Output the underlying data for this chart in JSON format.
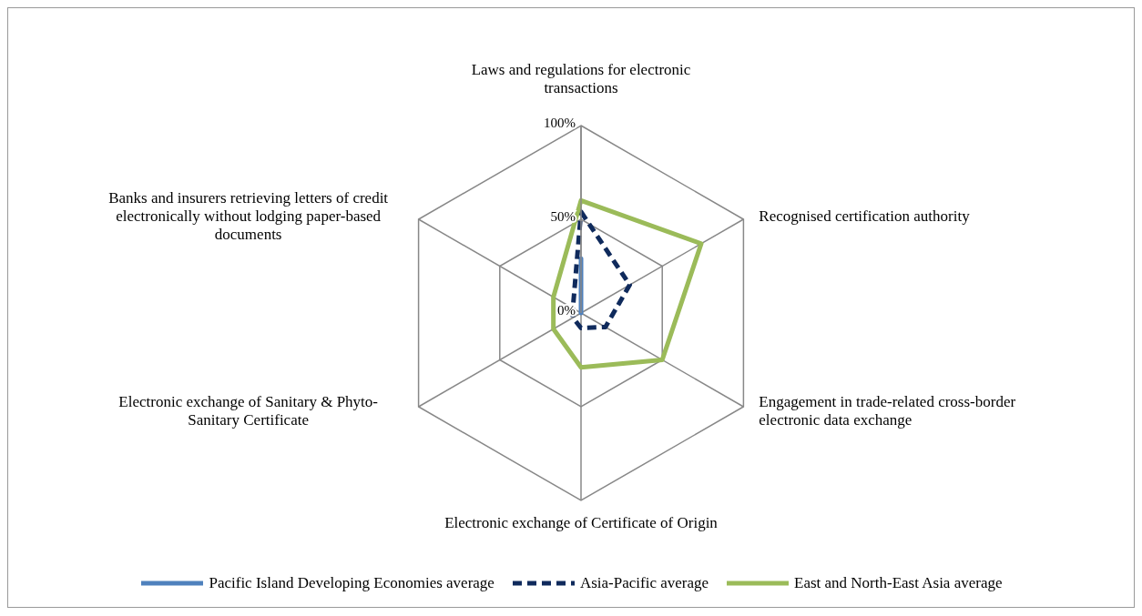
{
  "chart_data": {
    "type": "radar",
    "categories": [
      "Laws and regulations for electronic transactions",
      "Recognised certification authority",
      "Engagement in trade-related cross-border electronic data exchange",
      "Electronic exchange of Certificate of Origin",
      "Electronic exchange of Sanitary & Phyto-Sanitary Certificate",
      "Banks and insurers retrieving letters of credit electronically without lodging paper-based documents"
    ],
    "series": [
      {
        "name": "Pacific Island Developing Economies average",
        "color": "#4f81bd",
        "line_style": "solid",
        "values": [
          29,
          0,
          0,
          0,
          0,
          0
        ]
      },
      {
        "name": "Asia-Pacific average",
        "color": "#0f2a5c",
        "line_style": "dashed",
        "values": [
          54,
          30,
          15,
          8,
          5,
          5
        ]
      },
      {
        "name": "East and North-East Asia average",
        "color": "#9bbb59",
        "line_style": "solid",
        "values": [
          60,
          74,
          50,
          29,
          17,
          17
        ]
      }
    ],
    "ylim": [
      0,
      100
    ],
    "yticks": [
      {
        "value": 0,
        "label": "0%"
      },
      {
        "value": 50,
        "label": "50%"
      },
      {
        "value": 100,
        "label": "100%"
      }
    ],
    "grid": true,
    "marker": "none",
    "legend": "bottom"
  }
}
